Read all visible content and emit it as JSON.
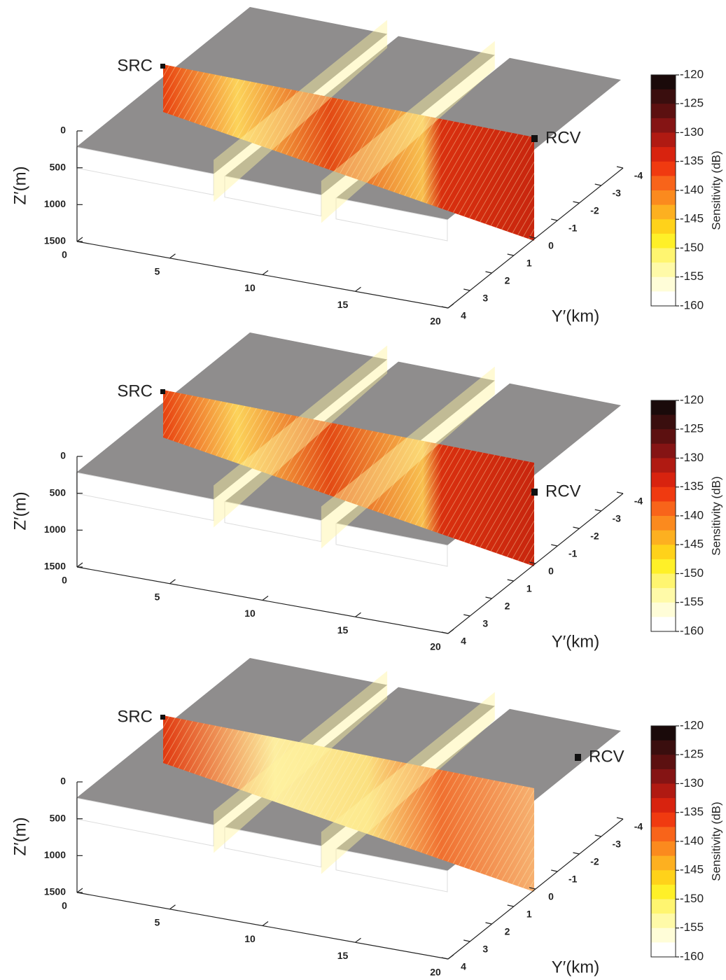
{
  "chart_data": [
    {
      "type": "slice3d",
      "src_label": "SRC",
      "rcv_label": "RCV",
      "zlabel": "Z′(m)",
      "ylabel": "Y′(km)",
      "xlim": [
        0,
        20
      ],
      "xticks": [
        0,
        5,
        10,
        15,
        20
      ],
      "ylim": [
        -4,
        4
      ],
      "yticks": [
        -4,
        -3,
        -2,
        -1,
        0,
        1,
        2,
        3,
        4
      ],
      "zlim": [
        0,
        1500
      ],
      "zticks": [
        0,
        500,
        1000,
        1500
      ],
      "colorbar": {
        "label": "Sensitivity (dB)",
        "lim": [
          -160,
          -120
        ],
        "ticks": [
          -120,
          -125,
          -130,
          -135,
          -140,
          -145,
          -150,
          -155,
          -160
        ],
        "colors": [
          "#1a0a0a",
          "#3a0e0e",
          "#5c1010",
          "#851414",
          "#b01a12",
          "#d8230f",
          "#f03a10",
          "#f8641a",
          "#fb8a1e",
          "#fdb020",
          "#ffd21a",
          "#fff028",
          "#fff570",
          "#fffaa8",
          "#fffdd8",
          "#ffffff"
        ]
      }
    },
    {
      "type": "slice3d",
      "src_label": "SRC",
      "rcv_label": "RCV",
      "zlabel": "Z′(m)",
      "ylabel": "Y′(km)",
      "xlim": [
        0,
        20
      ],
      "xticks": [
        0,
        5,
        10,
        15,
        20
      ],
      "ylim": [
        -4,
        4
      ],
      "yticks": [
        -4,
        -3,
        -2,
        -1,
        0,
        1,
        2,
        3,
        4
      ],
      "zlim": [
        0,
        1500
      ],
      "zticks": [
        0,
        500,
        1000,
        1500
      ],
      "colorbar": {
        "label": "Sensitivity (dB)",
        "lim": [
          -160,
          -120
        ],
        "ticks": [
          -120,
          -125,
          -130,
          -135,
          -140,
          -145,
          -150,
          -155,
          -160
        ],
        "colors": [
          "#1a0a0a",
          "#3a0e0e",
          "#5c1010",
          "#851414",
          "#b01a12",
          "#d8230f",
          "#f03a10",
          "#f8641a",
          "#fb8a1e",
          "#fdb020",
          "#ffd21a",
          "#fff028",
          "#fff570",
          "#fffaa8",
          "#fffdd8",
          "#ffffff"
        ]
      }
    },
    {
      "type": "slice3d",
      "src_label": "SRC",
      "rcv_label": "RCV",
      "zlabel": "Z′(m)",
      "ylabel": "Y′(km)",
      "xlim": [
        0,
        20
      ],
      "xticks": [
        0,
        5,
        10,
        15,
        20
      ],
      "ylim": [
        -4,
        4
      ],
      "yticks": [
        -4,
        -3,
        -2,
        -1,
        0,
        1,
        2,
        3,
        4
      ],
      "zlim": [
        0,
        1500
      ],
      "zticks": [
        0,
        500,
        1000,
        1500
      ],
      "colorbar": {
        "label": "Sensitivity (dB)",
        "lim": [
          -160,
          -120
        ],
        "ticks": [
          -120,
          -125,
          -130,
          -135,
          -140,
          -145,
          -150,
          -155,
          -160
        ],
        "colors": [
          "#1a0a0a",
          "#3a0e0e",
          "#5c1010",
          "#851414",
          "#b01a12",
          "#d8230f",
          "#f03a10",
          "#f8641a",
          "#fb8a1e",
          "#fdb020",
          "#ffd21a",
          "#fff028",
          "#fff570",
          "#fffaa8",
          "#fffdd8",
          "#ffffff"
        ]
      }
    }
  ]
}
